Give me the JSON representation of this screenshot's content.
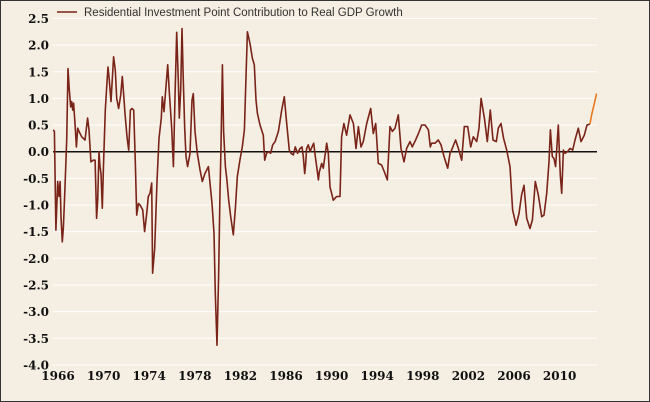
{
  "chart_data": {
    "type": "line",
    "title": "",
    "xlabel": "",
    "ylabel": "",
    "xlim": [
      1965.5,
      2013.3
    ],
    "ylim": [
      -4.0,
      2.5
    ],
    "x_ticks": [
      "1966",
      "1970",
      "1974",
      "1978",
      "1982",
      "1986",
      "1990",
      "1994",
      "1998",
      "2002",
      "2006",
      "2010"
    ],
    "y_ticks": [
      "2.5",
      "2.0",
      "1.5",
      "1.0",
      "0.5",
      "0.0",
      "-0.5",
      "-1.0",
      "-1.5",
      "-2.0",
      "-2.5",
      "-3.0",
      "-3.5",
      "-4.0"
    ],
    "grid": "horizontal",
    "zero_line": true,
    "legend": {
      "placement": "top-left",
      "entries": [
        "Residential Investment Point Contribution to Real GDP Growth"
      ]
    },
    "series": [
      {
        "name": "Residential Investment Point Contribution to Real GDP Growth",
        "color": "#7a2318",
        "x": [
          1965.59,
          1965.68,
          1965.82,
          1965.97,
          1966.09,
          1966.18,
          1966.26,
          1966.38,
          1966.47,
          1966.61,
          1966.76,
          1966.88,
          1966.99,
          1967.11,
          1967.2,
          1967.29,
          1967.37,
          1967.49,
          1967.61,
          1967.73,
          1967.84,
          1968.08,
          1968.37,
          1968.6,
          1968.72,
          1968.89,
          1969.1,
          1969.25,
          1969.39,
          1969.48,
          1969.6,
          1969.68,
          1969.77,
          1969.89,
          1969.98,
          1970.15,
          1970.3,
          1970.39,
          1970.5,
          1970.65,
          1970.88,
          1971.03,
          1971.15,
          1971.32,
          1971.5,
          1971.64,
          1971.76,
          1971.88,
          1972.05,
          1972.2,
          1972.35,
          1972.49,
          1972.64,
          1972.78,
          1972.9,
          1973.05,
          1973.19,
          1973.43,
          1973.6,
          1973.78,
          1973.92,
          1974.07,
          1974.22,
          1974.3,
          1974.48,
          1974.68,
          1974.86,
          1975.06,
          1975.15,
          1975.3,
          1975.44,
          1975.62,
          1975.77,
          1975.97,
          1976.12,
          1976.26,
          1976.41,
          1976.56,
          1976.64,
          1976.76,
          1976.88,
          1976.99,
          1977.11,
          1977.23,
          1977.37,
          1977.58,
          1977.75,
          1977.87,
          1978.02,
          1978.22,
          1978.46,
          1978.66,
          1978.89,
          1979.19,
          1979.33,
          1979.51,
          1979.68,
          1979.8,
          1979.95,
          1980.09,
          1980.21,
          1980.3,
          1980.42,
          1980.53,
          1980.68,
          1980.82,
          1980.97,
          1981.15,
          1981.38,
          1981.56,
          1981.73,
          1981.96,
          1982.17,
          1982.35,
          1982.46,
          1982.61,
          1982.84,
          1983.05,
          1983.22,
          1983.37,
          1983.49,
          1983.72,
          1984.01,
          1984.13,
          1984.3,
          1984.48,
          1984.65,
          1984.83,
          1985.04,
          1985.33,
          1985.62,
          1985.85,
          1986.06,
          1986.29,
          1986.44,
          1986.64,
          1986.82,
          1987.02,
          1987.23,
          1987.4,
          1987.52,
          1987.64,
          1987.73,
          1987.81,
          1987.96,
          1988.11,
          1988.22,
          1988.43,
          1988.57,
          1988.69,
          1988.84,
          1988.92,
          1989.13,
          1989.27,
          1989.57,
          1989.71,
          1989.86,
          1990.15,
          1990.44,
          1990.74,
          1990.88,
          1991.08,
          1991.32,
          1991.61,
          1991.91,
          1992.14,
          1992.35,
          1992.58,
          1992.78,
          1993.08,
          1993.43,
          1993.66,
          1993.87,
          1994.1,
          1994.39,
          1994.63,
          1994.89,
          1995.12,
          1995.33,
          1995.56,
          1995.85,
          1996.09,
          1996.35,
          1996.58,
          1996.88,
          1997.08,
          1997.37,
          1997.61,
          1997.9,
          1998.19,
          1998.49,
          1998.66,
          1998.78,
          1999.07,
          1999.36,
          1999.6,
          1999.86,
          2000.18,
          2000.39,
          2000.53,
          2000.88,
          2001.12,
          2001.41,
          2001.64,
          2001.94,
          2002.2,
          2002.43,
          2002.73,
          2002.93,
          2003.11,
          2003.4,
          2003.66,
          2003.92,
          2004.16,
          2004.45,
          2004.62,
          2004.86,
          2005.09,
          2005.36,
          2005.65,
          2005.88,
          2006.18,
          2006.44,
          2006.67,
          2006.88,
          2007.11,
          2007.4,
          2007.61,
          2007.87,
          2008.13,
          2008.43,
          2008.63,
          2008.87,
          2009.07,
          2009.19,
          2009.36,
          2009.51,
          2009.65,
          2009.89,
          2010.06,
          2010.18,
          2010.33,
          2010.47,
          2010.68,
          2010.91,
          2011.15,
          2011.35,
          2011.64,
          2011.88,
          2012.17,
          2012.4,
          2012.67
        ],
        "y": [
          0.41,
          0.38,
          -1.47,
          -0.56,
          -0.84,
          -0.56,
          -1.22,
          -1.69,
          -1.41,
          -0.66,
          0.22,
          1.56,
          1.16,
          0.84,
          0.94,
          0.78,
          0.91,
          0.53,
          0.09,
          0.44,
          0.38,
          0.28,
          0.22,
          0.63,
          0.41,
          -0.19,
          -0.16,
          -0.16,
          -1.25,
          -0.91,
          0,
          -0.28,
          -0.41,
          -1.06,
          -0.31,
          0.78,
          1.31,
          1.59,
          1.34,
          0.94,
          1.78,
          1.53,
          1.0,
          0.81,
          1.06,
          1.41,
          1.06,
          0.72,
          0.28,
          0.03,
          0.78,
          0.81,
          0.78,
          -0.19,
          -1.19,
          -0.97,
          -1.0,
          -1.09,
          -1.5,
          -1.16,
          -0.84,
          -0.78,
          -0.59,
          -2.28,
          -1.81,
          -0.56,
          0.25,
          0.63,
          1.03,
          0.75,
          1.13,
          1.63,
          1.09,
          0.44,
          -0.28,
          1.03,
          2.24,
          1.28,
          0.63,
          1.16,
          2.31,
          1.34,
          0.44,
          -0.09,
          -0.28,
          -0.03,
          0.97,
          1.09,
          0.38,
          -0.03,
          -0.34,
          -0.56,
          -0.41,
          -0.28,
          -0.59,
          -0.97,
          -1.53,
          -2.66,
          -3.63,
          -2.34,
          -0.75,
          0.09,
          1.63,
          0.38,
          -0.28,
          -0.53,
          -0.91,
          -1.22,
          -1.56,
          -1.06,
          -0.47,
          -0.16,
          0.09,
          0.41,
          1.16,
          2.25,
          2.03,
          1.75,
          1.63,
          0.97,
          0.72,
          0.5,
          0.31,
          -0.16,
          -0.03,
          0,
          -0.03,
          0.13,
          0.19,
          0.38,
          0.78,
          1.03,
          0.53,
          0.03,
          -0.03,
          -0.06,
          0.09,
          -0.03,
          0.06,
          0.09,
          -0.09,
          -0.41,
          -0.22,
          0.06,
          0.13,
          0,
          0.06,
          0.16,
          -0.09,
          -0.28,
          -0.53,
          -0.38,
          -0.22,
          -0.31,
          0.16,
          -0.03,
          -0.66,
          -0.91,
          -0.84,
          -0.84,
          0.28,
          0.53,
          0.31,
          0.69,
          0.53,
          0.06,
          0.47,
          0.09,
          0.19,
          0.53,
          0.81,
          0.34,
          0.53,
          -0.22,
          -0.25,
          -0.38,
          -0.53,
          0.47,
          0.38,
          0.44,
          0.69,
          0.06,
          -0.19,
          0.06,
          0.19,
          0.09,
          0.22,
          0.34,
          0.5,
          0.5,
          0.41,
          0.09,
          0.16,
          0.16,
          0.22,
          0.13,
          -0.09,
          -0.31,
          -0.03,
          0.03,
          0.22,
          0.06,
          -0.16,
          0.47,
          0.47,
          0.09,
          0.28,
          0.19,
          0.44,
          1.0,
          0.63,
          0.19,
          0.78,
          0.22,
          0.19,
          0.44,
          0.53,
          0.25,
          0.03,
          -0.28,
          -1.09,
          -1.38,
          -1.16,
          -0.81,
          -0.63,
          -1.25,
          -1.44,
          -1.28,
          -0.56,
          -0.81,
          -1.22,
          -1.19,
          -0.78,
          -0.19,
          0.41,
          -0.09,
          -0.13,
          -0.28,
          0.5,
          -0.44,
          -0.78,
          0.03,
          -0.03,
          0,
          0.06,
          0.03,
          0.22,
          0.44,
          0.19,
          0.31,
          0.5,
          0.52
        ]
      },
      {
        "color": "#e87a22",
        "x": [
          2012.67,
          2012.81,
          2013.05,
          2013.25
        ],
        "y": [
          0.52,
          0.69,
          0.91,
          1.09
        ]
      }
    ]
  },
  "colors": {
    "background": "#f5eee2",
    "grid": "#ffffff",
    "zero_line": "#111111"
  }
}
